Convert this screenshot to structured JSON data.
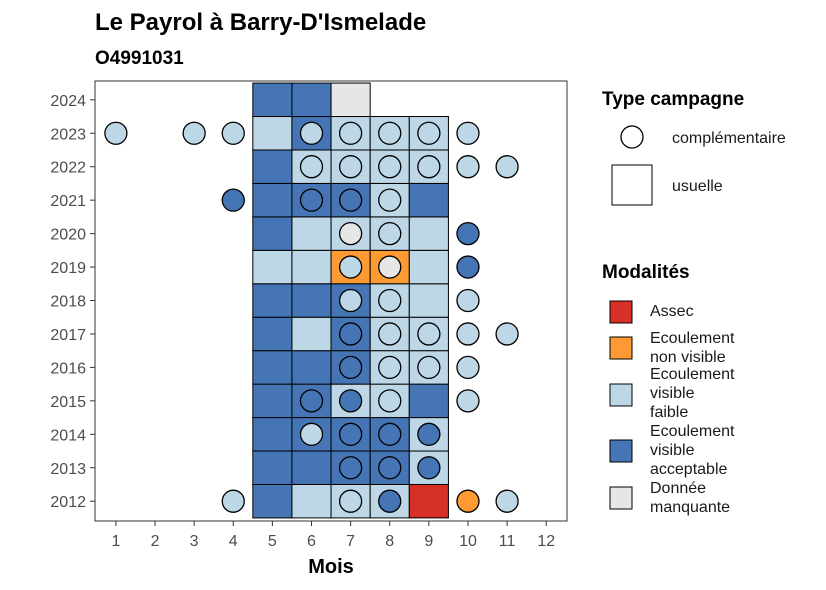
{
  "chart_data": {
    "type": "heatmap",
    "title": "Le Payrol à Barry-D'Ismelade",
    "subtitle": "O4991031",
    "xlabel": "Mois",
    "ylabel": "",
    "x_ticks": [
      "1",
      "2",
      "3",
      "4",
      "5",
      "6",
      "7",
      "8",
      "9",
      "10",
      "11",
      "12"
    ],
    "y_ticks": [
      "2012",
      "2013",
      "2014",
      "2015",
      "2016",
      "2017",
      "2018",
      "2019",
      "2020",
      "2021",
      "2022",
      "2023",
      "2024"
    ],
    "grid": false,
    "legend_position": "right",
    "modalites": [
      {
        "key": "assec",
        "label": "Assec",
        "color": "#d73027"
      },
      {
        "key": "nonvisible",
        "label": "Ecoulement non visible",
        "color": "#fd9a33"
      },
      {
        "key": "faible",
        "label": "Ecoulement visible faible",
        "color": "#bdd7e7"
      },
      {
        "key": "acceptable",
        "label": "Ecoulement visible acceptable",
        "color": "#4575b4"
      },
      {
        "key": "manquante",
        "label": "Donnée manquante",
        "color": "#e6e6e6"
      }
    ],
    "type_campagne": [
      {
        "key": "complementaire",
        "label": "complémentaire",
        "shape": "circle"
      },
      {
        "key": "usuelle",
        "label": "usuelle",
        "shape": "square"
      }
    ],
    "usuelle": [
      {
        "year": 2012,
        "month": 5,
        "modalite": "acceptable"
      },
      {
        "year": 2012,
        "month": 6,
        "modalite": "faible"
      },
      {
        "year": 2012,
        "month": 7,
        "modalite": "faible"
      },
      {
        "year": 2012,
        "month": 8,
        "modalite": "faible"
      },
      {
        "year": 2012,
        "month": 9,
        "modalite": "assec"
      },
      {
        "year": 2013,
        "month": 5,
        "modalite": "acceptable"
      },
      {
        "year": 2013,
        "month": 6,
        "modalite": "acceptable"
      },
      {
        "year": 2013,
        "month": 7,
        "modalite": "acceptable"
      },
      {
        "year": 2013,
        "month": 8,
        "modalite": "acceptable"
      },
      {
        "year": 2013,
        "month": 9,
        "modalite": "faible"
      },
      {
        "year": 2014,
        "month": 5,
        "modalite": "acceptable"
      },
      {
        "year": 2014,
        "month": 6,
        "modalite": "acceptable"
      },
      {
        "year": 2014,
        "month": 7,
        "modalite": "acceptable"
      },
      {
        "year": 2014,
        "month": 8,
        "modalite": "acceptable"
      },
      {
        "year": 2014,
        "month": 9,
        "modalite": "faible"
      },
      {
        "year": 2015,
        "month": 5,
        "modalite": "acceptable"
      },
      {
        "year": 2015,
        "month": 6,
        "modalite": "acceptable"
      },
      {
        "year": 2015,
        "month": 7,
        "modalite": "faible"
      },
      {
        "year": 2015,
        "month": 8,
        "modalite": "faible"
      },
      {
        "year": 2015,
        "month": 9,
        "modalite": "acceptable"
      },
      {
        "year": 2016,
        "month": 5,
        "modalite": "acceptable"
      },
      {
        "year": 2016,
        "month": 6,
        "modalite": "acceptable"
      },
      {
        "year": 2016,
        "month": 7,
        "modalite": "acceptable"
      },
      {
        "year": 2016,
        "month": 8,
        "modalite": "faible"
      },
      {
        "year": 2016,
        "month": 9,
        "modalite": "faible"
      },
      {
        "year": 2017,
        "month": 5,
        "modalite": "acceptable"
      },
      {
        "year": 2017,
        "month": 6,
        "modalite": "faible"
      },
      {
        "year": 2017,
        "month": 7,
        "modalite": "acceptable"
      },
      {
        "year": 2017,
        "month": 8,
        "modalite": "faible"
      },
      {
        "year": 2017,
        "month": 9,
        "modalite": "faible"
      },
      {
        "year": 2018,
        "month": 5,
        "modalite": "acceptable"
      },
      {
        "year": 2018,
        "month": 6,
        "modalite": "acceptable"
      },
      {
        "year": 2018,
        "month": 7,
        "modalite": "acceptable"
      },
      {
        "year": 2018,
        "month": 8,
        "modalite": "faible"
      },
      {
        "year": 2018,
        "month": 9,
        "modalite": "faible"
      },
      {
        "year": 2019,
        "month": 5,
        "modalite": "faible"
      },
      {
        "year": 2019,
        "month": 6,
        "modalite": "faible"
      },
      {
        "year": 2019,
        "month": 7,
        "modalite": "nonvisible"
      },
      {
        "year": 2019,
        "month": 8,
        "modalite": "nonvisible"
      },
      {
        "year": 2019,
        "month": 9,
        "modalite": "faible"
      },
      {
        "year": 2020,
        "month": 5,
        "modalite": "acceptable"
      },
      {
        "year": 2020,
        "month": 6,
        "modalite": "faible"
      },
      {
        "year": 2020,
        "month": 7,
        "modalite": "faible"
      },
      {
        "year": 2020,
        "month": 8,
        "modalite": "faible"
      },
      {
        "year": 2020,
        "month": 9,
        "modalite": "faible"
      },
      {
        "year": 2021,
        "month": 5,
        "modalite": "acceptable"
      },
      {
        "year": 2021,
        "month": 6,
        "modalite": "acceptable"
      },
      {
        "year": 2021,
        "month": 7,
        "modalite": "acceptable"
      },
      {
        "year": 2021,
        "month": 8,
        "modalite": "faible"
      },
      {
        "year": 2021,
        "month": 9,
        "modalite": "acceptable"
      },
      {
        "year": 2022,
        "month": 5,
        "modalite": "acceptable"
      },
      {
        "year": 2022,
        "month": 6,
        "modalite": "faible"
      },
      {
        "year": 2022,
        "month": 7,
        "modalite": "faible"
      },
      {
        "year": 2022,
        "month": 8,
        "modalite": "faible"
      },
      {
        "year": 2022,
        "month": 9,
        "modalite": "faible"
      },
      {
        "year": 2023,
        "month": 5,
        "modalite": "faible"
      },
      {
        "year": 2023,
        "month": 6,
        "modalite": "acceptable"
      },
      {
        "year": 2023,
        "month": 7,
        "modalite": "faible"
      },
      {
        "year": 2023,
        "month": 8,
        "modalite": "faible"
      },
      {
        "year": 2023,
        "month": 9,
        "modalite": "faible"
      },
      {
        "year": 2024,
        "month": 5,
        "modalite": "acceptable"
      },
      {
        "year": 2024,
        "month": 6,
        "modalite": "acceptable"
      },
      {
        "year": 2024,
        "month": 7,
        "modalite": "manquante"
      }
    ],
    "complementaire": [
      {
        "year": 2012,
        "month": 4,
        "modalite": "faible"
      },
      {
        "year": 2012,
        "month": 7,
        "modalite": "faible"
      },
      {
        "year": 2012,
        "month": 8,
        "modalite": "acceptable"
      },
      {
        "year": 2012,
        "month": 10,
        "modalite": "nonvisible"
      },
      {
        "year": 2012,
        "month": 11,
        "modalite": "faible"
      },
      {
        "year": 2013,
        "month": 7,
        "modalite": "acceptable"
      },
      {
        "year": 2013,
        "month": 8,
        "modalite": "acceptable"
      },
      {
        "year": 2013,
        "month": 9,
        "modalite": "acceptable"
      },
      {
        "year": 2014,
        "month": 6,
        "modalite": "faible"
      },
      {
        "year": 2014,
        "month": 7,
        "modalite": "acceptable"
      },
      {
        "year": 2014,
        "month": 8,
        "modalite": "acceptable"
      },
      {
        "year": 2014,
        "month": 9,
        "modalite": "acceptable"
      },
      {
        "year": 2015,
        "month": 6,
        "modalite": "acceptable"
      },
      {
        "year": 2015,
        "month": 7,
        "modalite": "acceptable"
      },
      {
        "year": 2015,
        "month": 8,
        "modalite": "faible"
      },
      {
        "year": 2015,
        "month": 10,
        "modalite": "faible"
      },
      {
        "year": 2016,
        "month": 7,
        "modalite": "acceptable"
      },
      {
        "year": 2016,
        "month": 8,
        "modalite": "faible"
      },
      {
        "year": 2016,
        "month": 9,
        "modalite": "faible"
      },
      {
        "year": 2016,
        "month": 10,
        "modalite": "faible"
      },
      {
        "year": 2017,
        "month": 7,
        "modalite": "acceptable"
      },
      {
        "year": 2017,
        "month": 8,
        "modalite": "faible"
      },
      {
        "year": 2017,
        "month": 9,
        "modalite": "faible"
      },
      {
        "year": 2017,
        "month": 10,
        "modalite": "faible"
      },
      {
        "year": 2017,
        "month": 11,
        "modalite": "faible"
      },
      {
        "year": 2018,
        "month": 7,
        "modalite": "faible"
      },
      {
        "year": 2018,
        "month": 8,
        "modalite": "faible"
      },
      {
        "year": 2018,
        "month": 10,
        "modalite": "faible"
      },
      {
        "year": 2019,
        "month": 7,
        "modalite": "faible"
      },
      {
        "year": 2019,
        "month": 8,
        "modalite": "manquante"
      },
      {
        "year": 2019,
        "month": 10,
        "modalite": "acceptable"
      },
      {
        "year": 2020,
        "month": 7,
        "modalite": "manquante"
      },
      {
        "year": 2020,
        "month": 8,
        "modalite": "faible"
      },
      {
        "year": 2020,
        "month": 10,
        "modalite": "acceptable"
      },
      {
        "year": 2021,
        "month": 4,
        "modalite": "acceptable"
      },
      {
        "year": 2021,
        "month": 6,
        "modalite": "acceptable"
      },
      {
        "year": 2021,
        "month": 7,
        "modalite": "acceptable"
      },
      {
        "year": 2021,
        "month": 8,
        "modalite": "faible"
      },
      {
        "year": 2022,
        "month": 6,
        "modalite": "faible"
      },
      {
        "year": 2022,
        "month": 7,
        "modalite": "faible"
      },
      {
        "year": 2022,
        "month": 8,
        "modalite": "faible"
      },
      {
        "year": 2022,
        "month": 9,
        "modalite": "faible"
      },
      {
        "year": 2022,
        "month": 10,
        "modalite": "faible"
      },
      {
        "year": 2022,
        "month": 11,
        "modalite": "faible"
      },
      {
        "year": 2023,
        "month": 1,
        "modalite": "faible"
      },
      {
        "year": 2023,
        "month": 3,
        "modalite": "faible"
      },
      {
        "year": 2023,
        "month": 4,
        "modalite": "faible"
      },
      {
        "year": 2023,
        "month": 6,
        "modalite": "faible"
      },
      {
        "year": 2023,
        "month": 7,
        "modalite": "faible"
      },
      {
        "year": 2023,
        "month": 8,
        "modalite": "faible"
      },
      {
        "year": 2023,
        "month": 9,
        "modalite": "faible"
      },
      {
        "year": 2023,
        "month": 10,
        "modalite": "faible"
      }
    ]
  },
  "legend": {
    "type_title": "Type campagne",
    "mod_title": "Modalités",
    "complementaire": "complémentaire",
    "usuelle": "usuelle",
    "assec": [
      "Assec"
    ],
    "nonvisible": [
      "Ecoulement",
      "non visible"
    ],
    "faible": [
      "Ecoulement",
      "visible",
      "faible"
    ],
    "acceptable": [
      "Ecoulement",
      "visible",
      "acceptable"
    ],
    "manquante": [
      "Donnée",
      "manquante"
    ]
  }
}
